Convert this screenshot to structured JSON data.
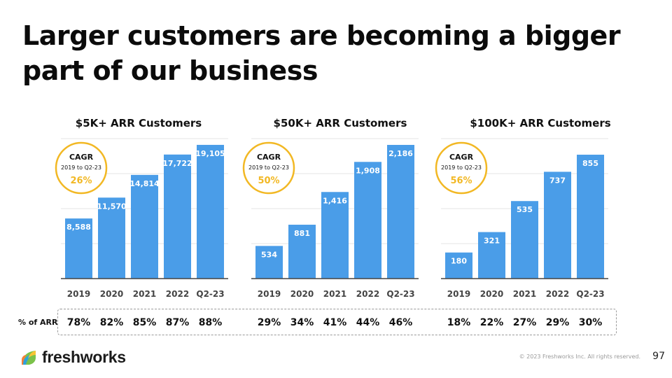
{
  "slide": {
    "title": "Larger customers are becoming a bigger part of our business",
    "pct_label": "% of ARR",
    "copyright": "© 2023 Freshworks Inc. All rights reserved.",
    "page_number": "97",
    "logo_text": "freshworks"
  },
  "colors": {
    "bar": "#4a9de8",
    "cagr_accent": "#f2b824"
  },
  "chart_data": [
    {
      "type": "bar",
      "title": "$5K+ ARR Customers",
      "categories": [
        "2019",
        "2020",
        "2021",
        "2022",
        "Q2-23"
      ],
      "values": [
        8588,
        11570,
        14814,
        17722,
        19105
      ],
      "value_labels": [
        "8,588",
        "11,570",
        "14,814",
        "17,722",
        "19,105"
      ],
      "ylim": [
        0,
        20000
      ],
      "cagr": {
        "title": "CAGR",
        "period": "2019 to Q2-23",
        "value": "26%"
      },
      "pct_of_arr": [
        "78%",
        "82%",
        "85%",
        "87%",
        "88%"
      ]
    },
    {
      "type": "bar",
      "title": "$50K+ ARR Customers",
      "categories": [
        "2019",
        "2020",
        "2021",
        "2022",
        "Q2-23"
      ],
      "values": [
        534,
        881,
        1416,
        1908,
        2186
      ],
      "value_labels": [
        "534",
        "881",
        "1,416",
        "1,908",
        "2,186"
      ],
      "ylim": [
        0,
        2289
      ],
      "cagr": {
        "title": "CAGR",
        "period": "2019 to Q2-23",
        "value": "50%"
      },
      "pct_of_arr": [
        "29%",
        "34%",
        "41%",
        "44%",
        "46%"
      ]
    },
    {
      "type": "bar",
      "title": "$100K+ ARR Customers",
      "categories": [
        "2019",
        "2020",
        "2021",
        "2022",
        "Q2-23"
      ],
      "values": [
        180,
        321,
        535,
        737,
        855
      ],
      "value_labels": [
        "180",
        "321",
        "535",
        "737",
        "855"
      ],
      "ylim": [
        0,
        966
      ],
      "cagr": {
        "title": "CAGR",
        "period": "2019 to Q2-23",
        "value": "56%"
      },
      "pct_of_arr": [
        "18%",
        "22%",
        "27%",
        "29%",
        "30%"
      ]
    }
  ]
}
